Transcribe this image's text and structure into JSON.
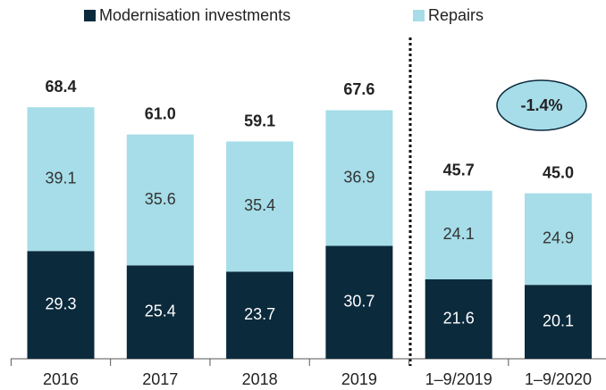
{
  "chart_data": {
    "type": "stacked_bar",
    "categories": [
      "2016",
      "2017",
      "2018",
      "2019",
      "1–9/2019",
      "1–9/2020"
    ],
    "series": [
      {
        "name": "Modernisation investments",
        "color": "#0b2a3c",
        "values": [
          29.3,
          25.4,
          23.7,
          30.7,
          21.6,
          20.1
        ]
      },
      {
        "name": "Repairs",
        "color": "#a6dde8",
        "values": [
          39.1,
          35.6,
          35.4,
          36.9,
          24.1,
          24.9
        ]
      }
    ],
    "totals": [
      68.4,
      61.0,
      59.1,
      67.6,
      45.7,
      45.0
    ],
    "total_labels": [
      "68.4",
      "61.0",
      "59.1",
      "67.6",
      "45.7",
      "45.0"
    ],
    "annotation": "-1.4%",
    "ylim": [
      0,
      80
    ]
  }
}
